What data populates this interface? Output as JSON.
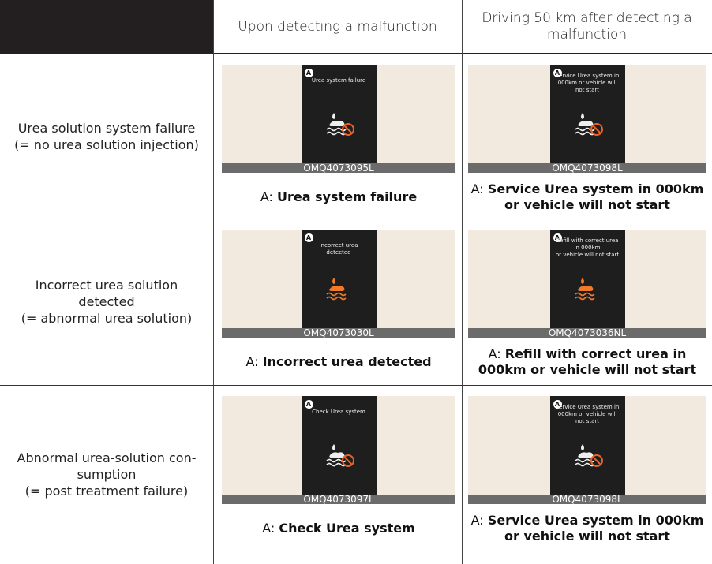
{
  "header": {
    "columns": [
      "Upon detecting a malfunction",
      "Driving 50 km after detecting a malfunction"
    ]
  },
  "rows": [
    {
      "label": [
        "Urea solution system failure",
        "(= no urea solution injection)"
      ],
      "cells": [
        {
          "badge": "A",
          "screen": [
            "Urea system failure"
          ],
          "code": "OMQ4073095L",
          "prefix": "A:",
          "caption": [
            "Urea system failure"
          ]
        },
        {
          "badge": "A",
          "screen": [
            "Service Urea system in",
            "000km or vehicle will",
            "not start"
          ],
          "code": "OMQ4073098L",
          "prefix": "A:",
          "caption": [
            "Service Urea system in 000km",
            "or vehicle will not start"
          ]
        }
      ]
    },
    {
      "label": [
        "Incorrect urea solution",
        "detected",
        "(= abnormal urea solution)"
      ],
      "cells": [
        {
          "badge": "A",
          "screen": [
            "Incorrect urea",
            "detected"
          ],
          "code": "OMQ4073030L",
          "prefix": "A:",
          "caption": [
            "Incorrect urea detected"
          ]
        },
        {
          "badge": "A",
          "screen": [
            "Refill with correct urea",
            "in 000km",
            "or vehicle will not start"
          ],
          "code": "OMQ4073036NL",
          "prefix": "A:",
          "caption": [
            "Refill with correct urea in",
            "000km or vehicle will not start"
          ]
        }
      ]
    },
    {
      "label": [
        "Abnormal urea-solution con-",
        "sumption",
        "(= post treatment failure)"
      ],
      "cells": [
        {
          "badge": "A",
          "screen": [
            "Check Urea system"
          ],
          "code": "OMQ4073097L",
          "prefix": "A:",
          "caption": [
            "Check Urea system"
          ]
        },
        {
          "badge": "A",
          "screen": [
            "Service Urea system in",
            "000km or vehicle will",
            "not start"
          ],
          "code": "OMQ4073098L",
          "prefix": "A:",
          "caption": [
            "Service Urea system in 000km",
            "or vehicle will not start"
          ]
        }
      ]
    }
  ]
}
